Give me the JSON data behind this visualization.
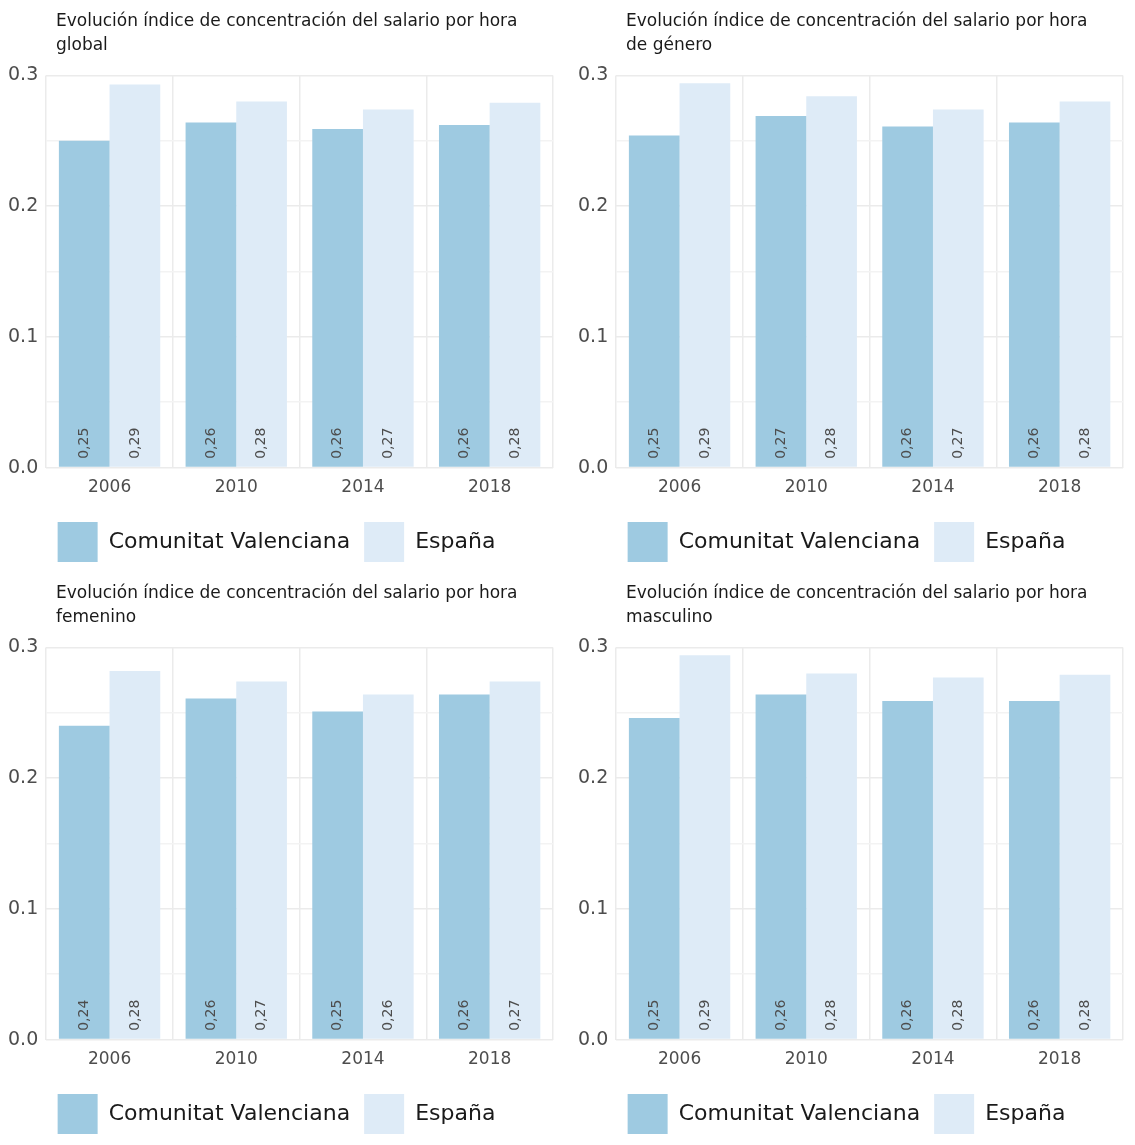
{
  "chart_data": [
    {
      "type": "bar",
      "title": "Evolución índice de concentración del salario por hora global",
      "categories": [
        "2006",
        "2010",
        "2014",
        "2018"
      ],
      "ylim": [
        0,
        0.3
      ],
      "yticks": [
        {
          "value": 0,
          "label": "0.0"
        },
        {
          "value": 0.05,
          "label": null
        },
        {
          "value": 0.1,
          "label": "0.1"
        },
        {
          "value": 0.15,
          "label": null
        },
        {
          "value": 0.2,
          "label": "0.2"
        },
        {
          "value": 0.25,
          "label": null
        },
        {
          "value": 0.3,
          "label": "0.3"
        }
      ],
      "grid": true,
      "legend": "bottom",
      "series": [
        {
          "name": "Comunitat Valenciana",
          "color": "#9ecae1",
          "values": [
            0.25,
            0.264,
            0.259,
            0.262
          ],
          "value_labels": [
            "0,25",
            "0,26",
            "0,26",
            "0,26"
          ]
        },
        {
          "name": "España",
          "color": "#deebf7",
          "values": [
            0.293,
            0.28,
            0.274,
            0.279
          ],
          "value_labels": [
            "0,29",
            "0,28",
            "0,27",
            "0,28"
          ]
        }
      ]
    },
    {
      "type": "bar",
      "title": "Evolución índice de concentración del salario por hora de género",
      "categories": [
        "2006",
        "2010",
        "2014",
        "2018"
      ],
      "ylim": [
        0,
        0.3
      ],
      "yticks": [
        {
          "value": 0,
          "label": "0.0"
        },
        {
          "value": 0.05,
          "label": null
        },
        {
          "value": 0.1,
          "label": "0.1"
        },
        {
          "value": 0.15,
          "label": null
        },
        {
          "value": 0.2,
          "label": "0.2"
        },
        {
          "value": 0.25,
          "label": null
        },
        {
          "value": 0.3,
          "label": "0.3"
        }
      ],
      "grid": true,
      "legend": "bottom",
      "series": [
        {
          "name": "Comunitat Valenciana",
          "color": "#9ecae1",
          "values": [
            0.254,
            0.269,
            0.261,
            0.264
          ],
          "value_labels": [
            "0,25",
            "0,27",
            "0,26",
            "0,26"
          ]
        },
        {
          "name": "España",
          "color": "#deebf7",
          "values": [
            0.294,
            0.284,
            0.274,
            0.28
          ],
          "value_labels": [
            "0,29",
            "0,28",
            "0,27",
            "0,28"
          ]
        }
      ]
    },
    {
      "type": "bar",
      "title": "Evolución índice de concentración del salario por hora femenino",
      "categories": [
        "2006",
        "2010",
        "2014",
        "2018"
      ],
      "ylim": [
        0,
        0.3
      ],
      "yticks": [
        {
          "value": 0,
          "label": "0.0"
        },
        {
          "value": 0.05,
          "label": null
        },
        {
          "value": 0.1,
          "label": "0.1"
        },
        {
          "value": 0.15,
          "label": null
        },
        {
          "value": 0.2,
          "label": "0.2"
        },
        {
          "value": 0.25,
          "label": null
        },
        {
          "value": 0.3,
          "label": "0.3"
        }
      ],
      "grid": true,
      "legend": "bottom",
      "series": [
        {
          "name": "Comunitat Valenciana",
          "color": "#9ecae1",
          "values": [
            0.24,
            0.261,
            0.251,
            0.264
          ],
          "value_labels": [
            "0,24",
            "0,26",
            "0,25",
            "0,26"
          ]
        },
        {
          "name": "España",
          "color": "#deebf7",
          "values": [
            0.282,
            0.274,
            0.264,
            0.274
          ],
          "value_labels": [
            "0,28",
            "0,27",
            "0,26",
            "0,27"
          ]
        }
      ]
    },
    {
      "type": "bar",
      "title": "Evolución índice de concentración del salario por hora masculino",
      "categories": [
        "2006",
        "2010",
        "2014",
        "2018"
      ],
      "ylim": [
        0,
        0.3
      ],
      "yticks": [
        {
          "value": 0,
          "label": "0.0"
        },
        {
          "value": 0.05,
          "label": null
        },
        {
          "value": 0.1,
          "label": "0.1"
        },
        {
          "value": 0.15,
          "label": null
        },
        {
          "value": 0.2,
          "label": "0.2"
        },
        {
          "value": 0.25,
          "label": null
        },
        {
          "value": 0.3,
          "label": "0.3"
        }
      ],
      "grid": true,
      "legend": "bottom",
      "series": [
        {
          "name": "Comunitat Valenciana",
          "color": "#9ecae1",
          "values": [
            0.246,
            0.264,
            0.259,
            0.259
          ],
          "value_labels": [
            "0,25",
            "0,26",
            "0,26",
            "0,26"
          ]
        },
        {
          "name": "España",
          "color": "#deebf7",
          "values": [
            0.294,
            0.28,
            0.277,
            0.279
          ],
          "value_labels": [
            "0,29",
            "0,28",
            "0,28",
            "0,28"
          ]
        }
      ]
    }
  ]
}
